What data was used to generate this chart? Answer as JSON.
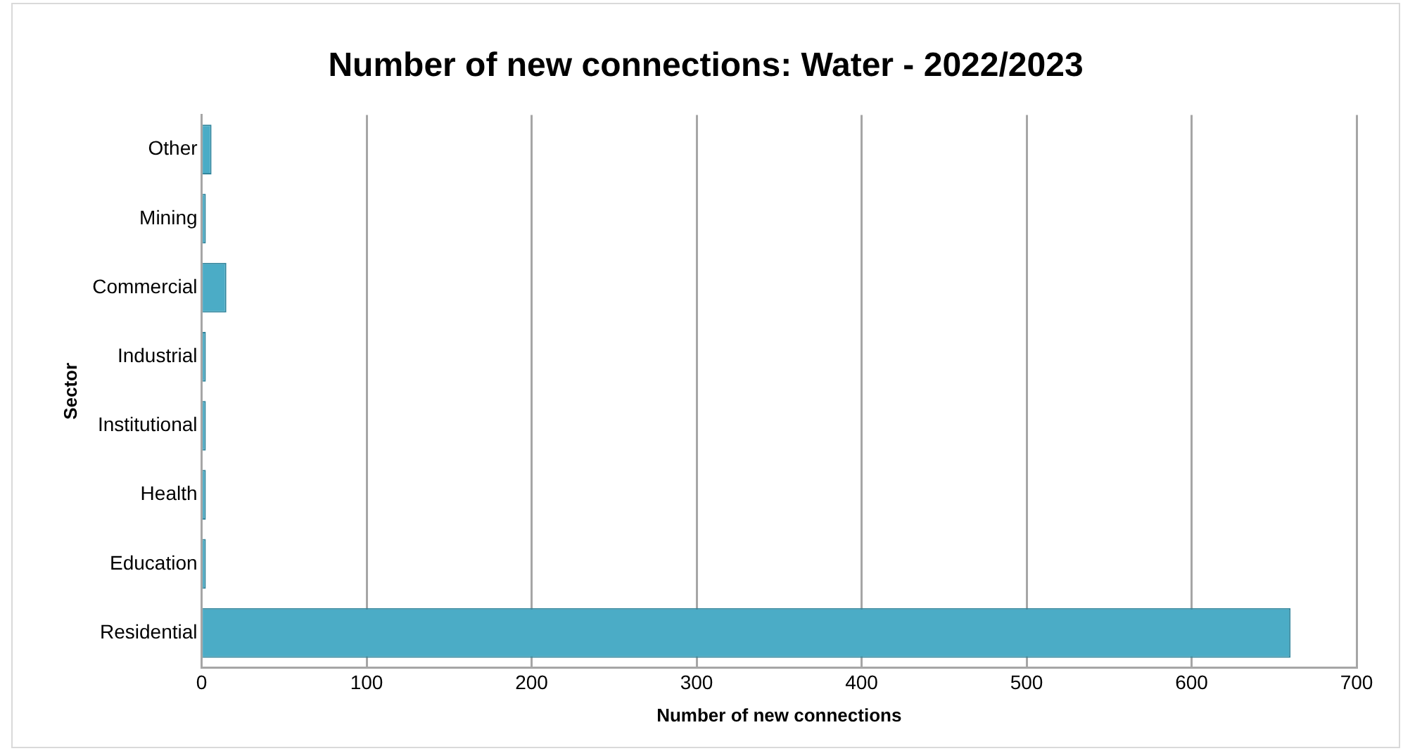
{
  "chart_data": {
    "type": "bar",
    "orientation": "horizontal",
    "title": "Number of new connections: Water - 2022/2023",
    "xlabel": "Number of new connections",
    "ylabel": "Sector",
    "categories": [
      "Other",
      "Mining",
      "Commercial",
      "Industrial",
      "Institutional",
      "Health",
      "Education",
      "Residential"
    ],
    "values": [
      6,
      0,
      15,
      0,
      0,
      0,
      0,
      660
    ],
    "color": "#4bacc6",
    "xlim": [
      0,
      700
    ],
    "xticks": [
      0,
      100,
      200,
      300,
      400,
      500,
      600,
      700
    ],
    "grid": "x"
  }
}
